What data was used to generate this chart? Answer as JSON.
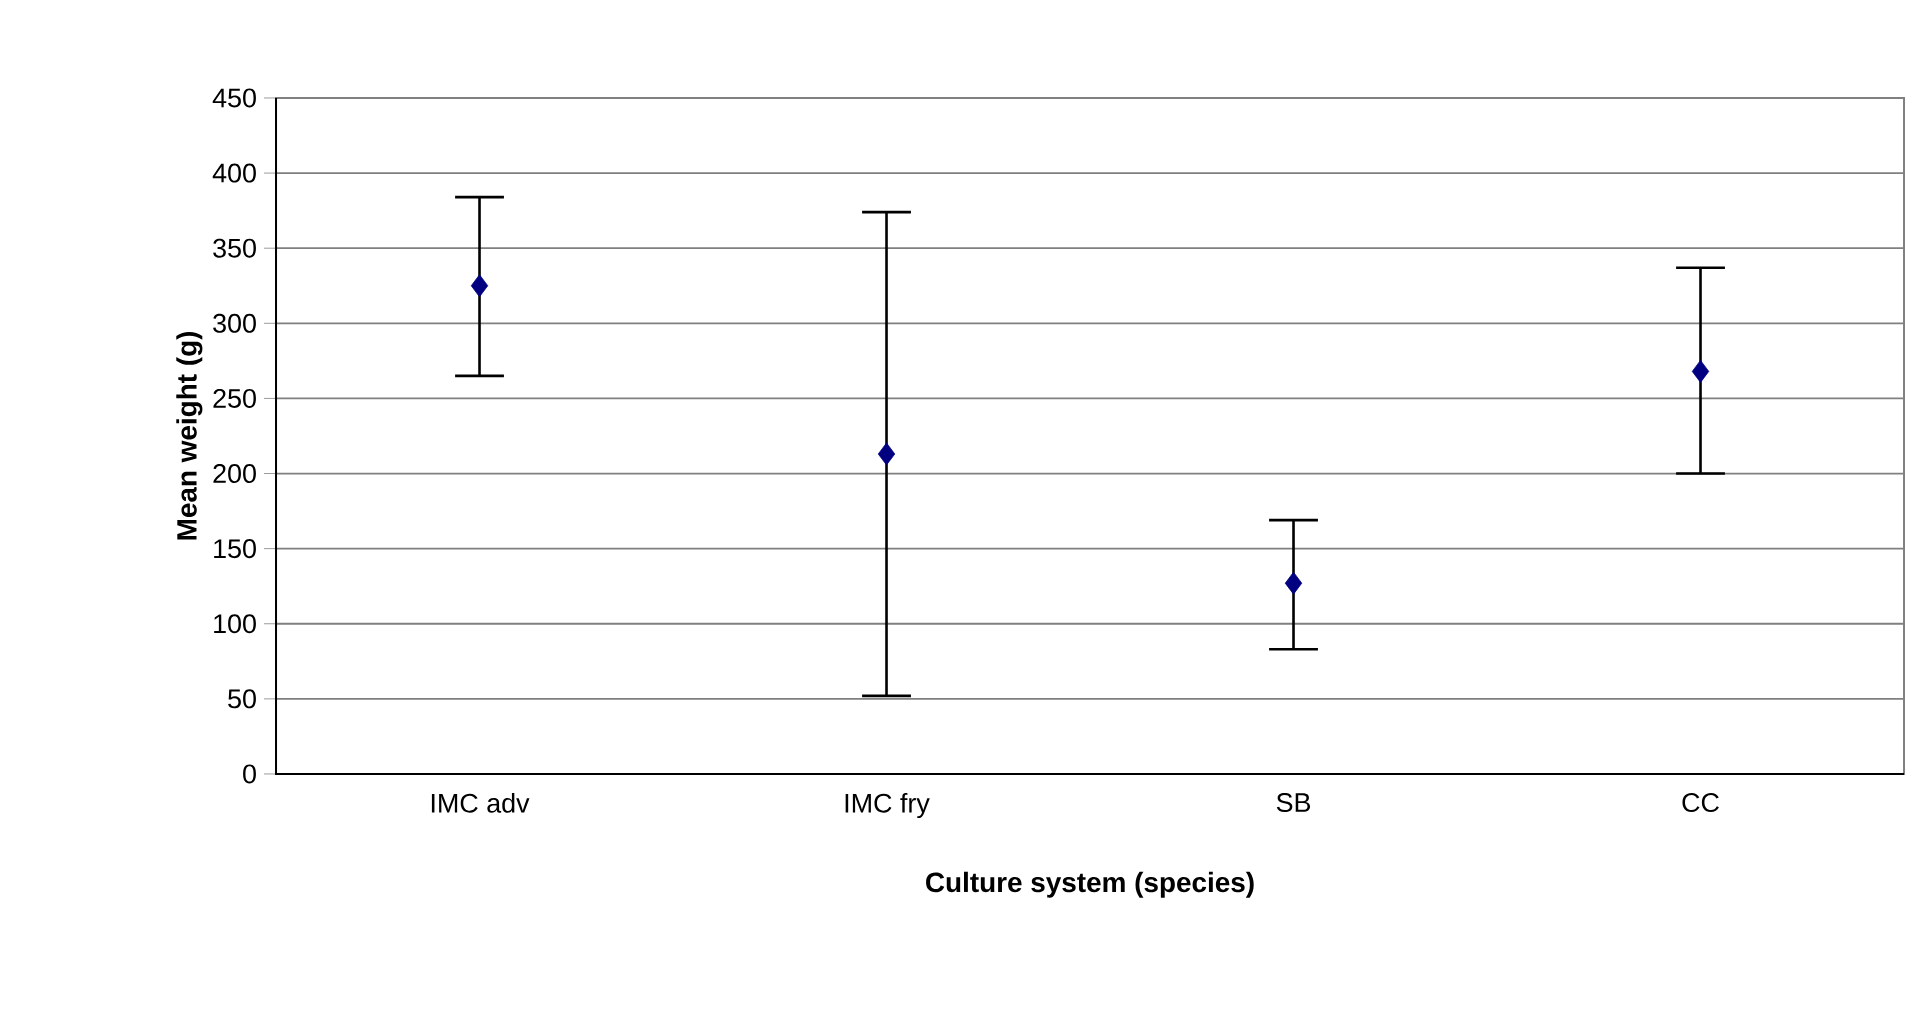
{
  "chart_data": {
    "type": "scatter",
    "xlabel": "Culture system (species)",
    "ylabel": "Mean weight (g)",
    "categories": [
      "IMC adv",
      "IMC fry",
      "SB",
      "CC"
    ],
    "values": [
      325,
      213,
      127,
      268
    ],
    "errors": [
      [
        265,
        384
      ],
      [
        52,
        374
      ],
      [
        83,
        169
      ],
      [
        200,
        337
      ]
    ],
    "color": "#000080",
    "marker": "diamond",
    "ylim": [
      0,
      450
    ],
    "yticks": [
      0,
      50,
      100,
      150,
      200,
      250,
      300,
      350,
      400,
      450
    ],
    "grid": "y"
  }
}
